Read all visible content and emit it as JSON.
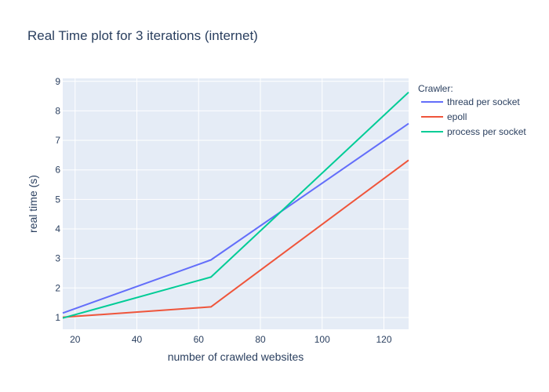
{
  "chart_data": {
    "type": "line",
    "title": "Real Time plot for 3 iterations (internet)",
    "xlabel": "number of crawled websites",
    "ylabel": "real time (s)",
    "xlim": [
      16,
      128
    ],
    "ylim": [
      0.6,
      9.1
    ],
    "xticks": [
      20,
      40,
      60,
      80,
      100,
      120
    ],
    "yticks": [
      1,
      2,
      3,
      4,
      5,
      6,
      7,
      8,
      9
    ],
    "grid": true,
    "plot_bgcolor": "#e5ecf6",
    "legend": {
      "title": "Crawler:",
      "position": "right"
    },
    "series": [
      {
        "name": "thread per socket",
        "color": "#636efa",
        "x": [
          16,
          64,
          128
        ],
        "y": [
          1.15,
          2.95,
          7.57
        ]
      },
      {
        "name": "epoll",
        "color": "#ef553b",
        "x": [
          16,
          64,
          128
        ],
        "y": [
          1.01,
          1.36,
          6.33
        ]
      },
      {
        "name": "process per socket",
        "color": "#00cc96",
        "x": [
          16,
          64,
          128
        ],
        "y": [
          0.98,
          2.37,
          8.63
        ]
      }
    ]
  }
}
